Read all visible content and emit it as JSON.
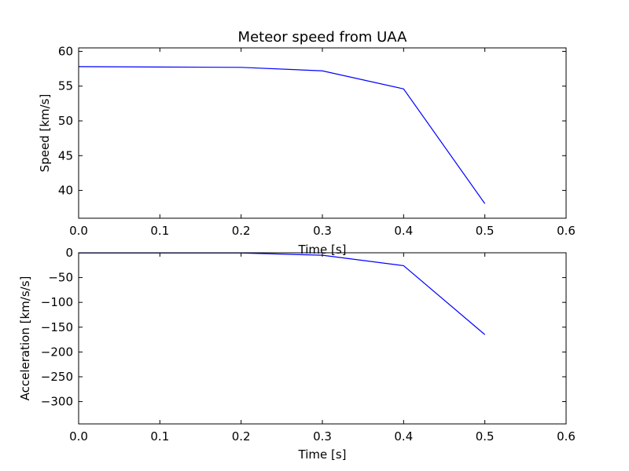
{
  "chart_data": [
    {
      "type": "line",
      "title": "Meteor speed from  UAA",
      "xlabel": "Time [s]",
      "ylabel": "Speed [km/s]",
      "xlim": [
        0.0,
        0.6
      ],
      "ylim": [
        36.0,
        60.5
      ],
      "grid": false,
      "color": "#0000ff",
      "x": [
        0.0,
        0.1,
        0.2,
        0.3,
        0.4,
        0.5
      ],
      "y": [
        57.8,
        57.75,
        57.7,
        57.2,
        54.6,
        38.1
      ],
      "xticks": [
        "0.0",
        "0.1",
        "0.2",
        "0.3",
        "0.4",
        "0.5",
        "0.6"
      ],
      "yticks": [
        "40",
        "45",
        "50",
        "55",
        "60"
      ],
      "ytick_values": [
        40,
        45,
        50,
        55,
        60
      ],
      "xtick_values": [
        0.0,
        0.1,
        0.2,
        0.3,
        0.4,
        0.5,
        0.6
      ]
    },
    {
      "type": "line",
      "title": "",
      "xlabel": "Time [s]",
      "ylabel": "Acceleration [km/s/s]",
      "xlim": [
        0.0,
        0.6
      ],
      "ylim": [
        -345,
        0
      ],
      "grid": false,
      "color": "#0000ff",
      "x": [
        0.0,
        0.1,
        0.2,
        0.3,
        0.4,
        0.5
      ],
      "y": [
        -0.5,
        -0.5,
        -0.5,
        -5,
        -26,
        -165
      ],
      "xticks": [
        "0.0",
        "0.1",
        "0.2",
        "0.3",
        "0.4",
        "0.5",
        "0.6"
      ],
      "yticks": [
        "0",
        "−50",
        "−100",
        "−150",
        "−200",
        "−250",
        "−300"
      ],
      "ytick_values": [
        0,
        -50,
        -100,
        -150,
        -200,
        -250,
        -300
      ],
      "xtick_values": [
        0.0,
        0.1,
        0.2,
        0.3,
        0.4,
        0.5,
        0.6
      ]
    }
  ]
}
